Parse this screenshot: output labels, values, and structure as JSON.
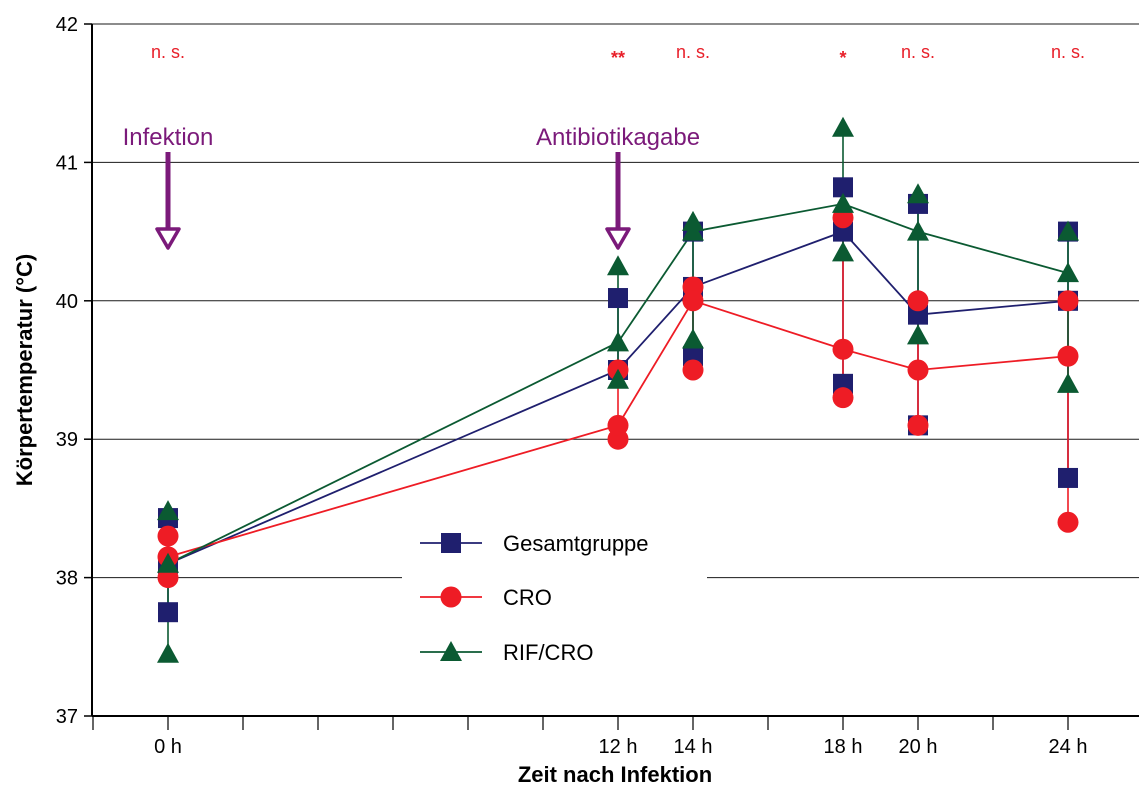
{
  "chart_data": {
    "type": "line",
    "title": "",
    "xlabel": "Zeit nach Infektion",
    "ylabel": "Körpertemperatur (°C)",
    "ylim": [
      37,
      42
    ],
    "yticks": [
      37,
      38,
      39,
      40,
      41,
      42
    ],
    "xlim": [
      0,
      24
    ],
    "xticks": [
      {
        "value": 0,
        "label": "0 h"
      },
      {
        "value": 12,
        "label": "12 h"
      },
      {
        "value": 14,
        "label": "14 h"
      },
      {
        "value": 18,
        "label": "18 h"
      },
      {
        "value": 20,
        "label": "20 h"
      },
      {
        "value": 24,
        "label": "24 h"
      }
    ],
    "grid": true,
    "legend_position": "bottom-center",
    "colors": {
      "gesamt": "#1f1f6e",
      "cro": "#ee1c25",
      "rif": "#0b5a32",
      "event": "#7b1a7a",
      "sig": "#e8202a"
    },
    "series": [
      {
        "name": "Gesamtgruppe",
        "marker": "square",
        "x": [
          0,
          12,
          14,
          18,
          20,
          24
        ],
        "mean": [
          38.1,
          39.5,
          40.1,
          40.5,
          39.9,
          40.0
        ],
        "low": [
          37.75,
          39.5,
          39.6,
          39.4,
          39.1,
          38.72
        ],
        "high": [
          38.43,
          40.02,
          40.5,
          40.82,
          40.7,
          40.5
        ]
      },
      {
        "name": "CRO",
        "marker": "circle",
        "x": [
          0,
          12,
          14,
          18,
          20,
          24
        ],
        "mean": [
          38.15,
          39.1,
          40.0,
          39.65,
          39.5,
          39.6
        ],
        "low": [
          38.0,
          39.0,
          39.5,
          39.3,
          39.1,
          38.4
        ],
        "high": [
          38.3,
          39.5,
          40.1,
          40.6,
          40.0,
          40.0
        ]
      },
      {
        "name": "RIF/CRO",
        "marker": "triangle",
        "x": [
          0,
          12,
          14,
          18,
          20,
          24
        ],
        "mean": [
          38.1,
          39.7,
          40.5,
          40.7,
          40.5,
          40.2
        ],
        "low": [
          37.45,
          39.43,
          39.72,
          40.35,
          39.75,
          39.4
        ],
        "high": [
          38.48,
          40.25,
          40.57,
          41.25,
          40.77,
          40.5
        ]
      }
    ],
    "significance": [
      {
        "x": 0,
        "label": "n. s."
      },
      {
        "x": 12,
        "label": "**"
      },
      {
        "x": 14,
        "label": "n. s."
      },
      {
        "x": 18,
        "label": "*"
      },
      {
        "x": 20,
        "label": "n. s."
      },
      {
        "x": 24,
        "label": "n. s."
      }
    ],
    "events": [
      {
        "x": 0,
        "label": "Infektion"
      },
      {
        "x": 12,
        "label": "Antibiotikagabe"
      }
    ]
  }
}
